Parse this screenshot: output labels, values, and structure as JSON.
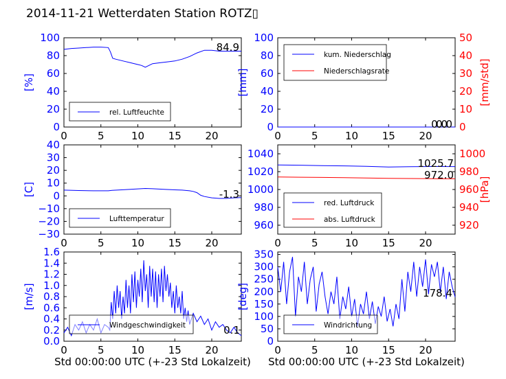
{
  "figure": {
    "title": "2014-11-21 Wetterdaten Station ROTZ▯",
    "xlabel": "Std 00:00:00 UTC (+-23 Std Lokalzeit)"
  },
  "colors": {
    "primary": "#0000ff",
    "secondary": "#ff0000",
    "axes": "#000000"
  },
  "chart_data": [
    {
      "type": "line",
      "ylabel": "[%]",
      "ylim": [
        0,
        100
      ],
      "yticks": [
        "0",
        "20",
        "40",
        "60",
        "80",
        "100"
      ],
      "xlim": [
        0,
        24
      ],
      "xticks": [
        "0",
        "5",
        "10",
        "15",
        "20"
      ],
      "legend": "lower-left",
      "series": [
        {
          "name": "rel. Luftfeuchte",
          "color": "#0000ff",
          "x": [
            0,
            1,
            2,
            3,
            4,
            5,
            6,
            6.3,
            6.6,
            7,
            8,
            9,
            10,
            10.5,
            11,
            11.5,
            12,
            13,
            14,
            15,
            16,
            17,
            18,
            19,
            20,
            21,
            22,
            23,
            24
          ],
          "y": [
            87,
            88,
            88.5,
            89,
            89.5,
            89.5,
            89,
            84,
            77,
            76,
            74,
            72,
            70,
            69,
            67,
            69,
            71,
            72,
            73,
            74,
            76,
            79,
            83,
            86,
            86,
            85,
            85,
            85,
            85
          ]
        }
      ],
      "last_value": "84.9"
    },
    {
      "type": "line",
      "ylabel": "[mm]",
      "ylim": [
        0,
        100
      ],
      "yticks": [
        "0",
        "20",
        "40",
        "60",
        "80",
        "100"
      ],
      "ylabel_right": "[mm/std]",
      "ylim_right": [
        0,
        50
      ],
      "yticks_right": [
        "0",
        "10",
        "20",
        "30",
        "40",
        "50"
      ],
      "xlim": [
        0,
        24
      ],
      "xticks": [
        "0",
        "5",
        "10",
        "15",
        "20"
      ],
      "legend": "upper-left",
      "series": [
        {
          "name": "kum. Niederschlag",
          "color": "#0000ff",
          "axis": "left",
          "x": [
            0,
            24
          ],
          "y": [
            0,
            0
          ]
        },
        {
          "name": "Niederschlagsrate",
          "color": "#ff0000",
          "axis": "right",
          "x": [
            0,
            24
          ],
          "y": [
            0,
            0
          ]
        }
      ],
      "last_value": "0.0",
      "last_value_2": "0.0"
    },
    {
      "type": "line",
      "ylabel": "[C]",
      "ylim": [
        -30,
        40
      ],
      "yticks": [
        "−30",
        "−20",
        "−10",
        "0",
        "10",
        "20",
        "30",
        "40"
      ],
      "xlim": [
        0,
        24
      ],
      "xticks": [
        "0",
        "5",
        "10",
        "15",
        "20"
      ],
      "legend": "lower-left",
      "series": [
        {
          "name": "Lufttemperatur",
          "color": "#0000ff",
          "x": [
            0,
            2,
            4,
            6,
            6.5,
            8,
            10,
            11,
            12,
            14,
            16,
            17,
            17.5,
            18,
            18.5,
            19,
            20,
            21,
            22,
            23,
            24
          ],
          "y": [
            4.5,
            4.2,
            4.0,
            4.0,
            4.3,
            4.8,
            5.5,
            5.8,
            5.6,
            5.0,
            4.5,
            4.0,
            3.5,
            2.5,
            0.5,
            -0.5,
            -1.5,
            -2.0,
            -2.0,
            -1.5,
            -1.3
          ]
        }
      ],
      "last_value": "-1.3"
    },
    {
      "type": "line",
      "ylabel_right": "[hPa]",
      "ylim": [
        950,
        1050
      ],
      "yticks": [
        "960",
        "980",
        "1000",
        "1020",
        "1040"
      ],
      "ylim_right": [
        910,
        1010
      ],
      "yticks_right": [
        "920",
        "940",
        "960",
        "980",
        "1000"
      ],
      "xlim": [
        0,
        24
      ],
      "xticks": [
        "0",
        "5",
        "10",
        "15",
        "20"
      ],
      "legend": "lower-left",
      "series": [
        {
          "name": "red. Luftdruck",
          "color": "#0000ff",
          "axis": "left",
          "x": [
            0,
            3,
            6,
            9,
            12,
            15,
            18,
            21,
            24
          ],
          "y": [
            1027.5,
            1027.2,
            1026.8,
            1026.5,
            1026,
            1025.2,
            1025.5,
            1025.8,
            1025.7
          ]
        }
      ],
      "series_right": [
        {
          "name": "abs. Luftdruck",
          "color": "#ff0000",
          "axis": "right",
          "x": [
            0,
            3,
            6,
            9,
            12,
            15,
            18,
            21,
            24
          ],
          "y": [
            974,
            973.8,
            973.5,
            973.2,
            972.9,
            972.5,
            972.3,
            972.1,
            972.0
          ]
        }
      ],
      "last_value": "1025.7",
      "last_value_2": "972.0"
    },
    {
      "type": "line",
      "ylabel": "[m/s]",
      "ylim": [
        0,
        1.6
      ],
      "yticks": [
        "0.0",
        "0.2",
        "0.4",
        "0.6",
        "0.8",
        "1.0",
        "1.2",
        "1.4",
        "1.6"
      ],
      "xlim": [
        0,
        24
      ],
      "xticks": [
        "0",
        "5",
        "10",
        "15",
        "20"
      ],
      "legend": "lower-left",
      "series": [
        {
          "name": "Windgeschwindigkeit",
          "color": "#0000ff",
          "x": [
            0,
            0.5,
            1,
            1.5,
            2,
            2.5,
            3,
            3.5,
            4,
            4.5,
            5,
            5.5,
            6,
            6.2,
            6.4,
            6.6,
            6.8,
            7,
            7.2,
            7.4,
            7.6,
            7.8,
            8,
            8.2,
            8.4,
            8.6,
            8.8,
            9,
            9.2,
            9.4,
            9.6,
            9.8,
            10,
            10.2,
            10.4,
            10.6,
            10.8,
            11,
            11.2,
            11.4,
            11.6,
            11.8,
            12,
            12.2,
            12.4,
            12.6,
            12.8,
            13,
            13.2,
            13.4,
            13.6,
            13.8,
            14,
            14.2,
            14.4,
            14.6,
            14.8,
            15,
            15.2,
            15.4,
            15.6,
            15.8,
            16,
            16.2,
            16.4,
            16.6,
            16.8,
            17,
            17.5,
            18,
            18.5,
            19,
            19.5,
            20,
            20.5,
            21,
            21.5,
            22,
            22.5,
            23,
            23.5,
            24
          ],
          "y": [
            0.15,
            0.25,
            0.1,
            0.3,
            0.2,
            0.35,
            0.15,
            0.3,
            0.2,
            0.4,
            0.15,
            0.3,
            0.25,
            0.2,
            0.7,
            0.4,
            0.9,
            0.5,
            1.0,
            0.6,
            0.9,
            0.4,
            0.8,
            0.5,
            1.1,
            0.6,
            1.0,
            0.5,
            1.2,
            0.7,
            1.25,
            0.6,
            1.1,
            0.8,
            1.3,
            0.7,
            1.45,
            0.9,
            1.2,
            0.6,
            1.35,
            0.8,
            1.3,
            0.7,
            1.25,
            0.6,
            1.2,
            0.8,
            1.3,
            0.7,
            1.35,
            0.9,
            1.2,
            0.8,
            1.05,
            0.6,
            0.9,
            0.5,
            1.0,
            0.6,
            0.8,
            0.5,
            0.9,
            0.4,
            0.6,
            0.35,
            0.55,
            0.3,
            0.5,
            0.35,
            0.45,
            0.3,
            0.4,
            0.2,
            0.35,
            0.25,
            0.3,
            0.2,
            0.15,
            0.25,
            0.15,
            0.1
          ]
        }
      ],
      "last_value": "0.1"
    },
    {
      "type": "line",
      "ylabel": "[deg]",
      "ylim": [
        0,
        360
      ],
      "yticks": [
        "0",
        "50",
        "100",
        "150",
        "200",
        "250",
        "300",
        "350"
      ],
      "xlim": [
        0,
        24
      ],
      "xticks": [
        "0",
        "5",
        "10",
        "15",
        "20"
      ],
      "legend": "lower-left",
      "series": [
        {
          "name": "Windrichtung",
          "color": "#0000ff",
          "x": [
            0,
            0.4,
            0.8,
            1.2,
            1.6,
            2,
            2.4,
            2.8,
            3.2,
            3.6,
            4,
            4.4,
            4.8,
            5.2,
            5.6,
            6,
            6.4,
            6.8,
            7.2,
            7.6,
            8,
            8.4,
            8.8,
            9.2,
            9.6,
            10,
            10.4,
            10.8,
            11.2,
            11.6,
            12,
            12.4,
            12.8,
            13.2,
            13.6,
            14,
            14.4,
            14.8,
            15.2,
            15.6,
            16,
            16.4,
            16.8,
            17.2,
            17.6,
            18,
            18.4,
            18.8,
            19.2,
            19.6,
            20,
            20.4,
            20.8,
            21.2,
            21.6,
            22,
            22.4,
            22.8,
            23.2,
            23.6,
            24
          ],
          "y": [
            300,
            200,
            320,
            150,
            280,
            340,
            100,
            260,
            200,
            320,
            150,
            250,
            300,
            120,
            230,
            280,
            180,
            110,
            200,
            150,
            260,
            90,
            180,
            130,
            220,
            100,
            170,
            60,
            150,
            110,
            200,
            90,
            160,
            70,
            140,
            100,
            180,
            80,
            130,
            60,
            150,
            90,
            250,
            120,
            280,
            200,
            320,
            180,
            300,
            220,
            330,
            190,
            310,
            260,
            320,
            200,
            300,
            170,
            280,
            220,
            178
          ]
        }
      ],
      "last_value": "178.4"
    }
  ]
}
